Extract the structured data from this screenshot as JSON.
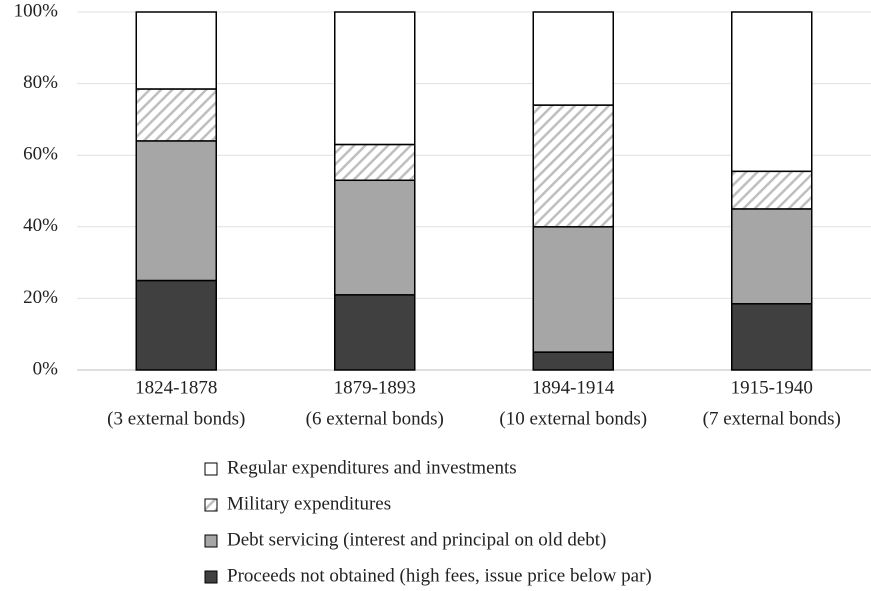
{
  "chart_data": {
    "type": "stacked_bar",
    "categories": [
      [
        "1824-1878",
        "(3 external bonds)"
      ],
      [
        "1879-1893",
        "(6 external bonds)"
      ],
      [
        "1894-1914",
        "(10 external bonds)"
      ],
      [
        "1915-1940",
        "(7 external bonds)"
      ]
    ],
    "series": [
      {
        "name": "Proceeds not obtained (high fees, issue price below par)",
        "color": "#404040",
        "values": [
          25,
          21,
          5,
          18.5
        ]
      },
      {
        "name": "Debt servicing (interest and principal on old debt)",
        "color": "#a6a6a6",
        "values": [
          39,
          32,
          35,
          26.5
        ]
      },
      {
        "name": "Military expenditures",
        "color": "#bfbfbf",
        "pattern": "hatch",
        "values": [
          14.5,
          10,
          34,
          10.5
        ]
      },
      {
        "name": "Regular expenditures and investments",
        "color": "#ffffff",
        "values": [
          21.5,
          37,
          26,
          44.5
        ]
      }
    ],
    "ylim": [
      0,
      100
    ],
    "yticks": [
      {
        "value": 0,
        "label": "0%"
      },
      {
        "value": 20,
        "label": "20%"
      },
      {
        "value": 40,
        "label": "40%"
      },
      {
        "value": 60,
        "label": "60%"
      },
      {
        "value": 80,
        "label": "80%"
      },
      {
        "value": 100,
        "label": "100%"
      }
    ],
    "grid": true,
    "legend": "bottom"
  }
}
